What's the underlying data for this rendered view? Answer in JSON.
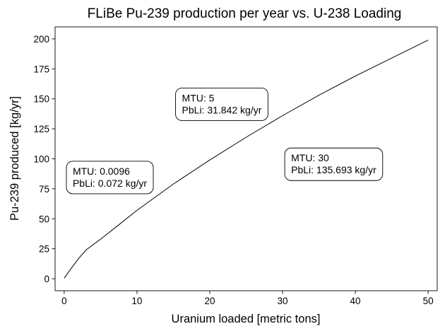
{
  "chart_data": {
    "type": "line",
    "title": "FLiBe Pu-239 production per year vs. U-238 Loading",
    "xlabel": "Uranium loaded [metric tons]",
    "ylabel": "Pu-239 produced [kg/yr]",
    "xlim": [
      -1.25,
      51.25
    ],
    "ylim": [
      -10,
      210
    ],
    "xticks": [
      0,
      10,
      20,
      30,
      40,
      50
    ],
    "yticks": [
      0,
      25,
      50,
      75,
      100,
      125,
      150,
      175,
      200
    ],
    "grid": false,
    "line_color": "#000000",
    "series": [
      {
        "x": [
          0,
          1,
          2,
          3,
          5,
          7.5,
          10,
          15,
          20,
          25,
          30,
          35,
          40,
          45,
          50
        ],
        "y": [
          0.5,
          9,
          17,
          24,
          33,
          45,
          57,
          79,
          99,
          118,
          136,
          153,
          169,
          184,
          199
        ]
      }
    ],
    "annotations": [
      {
        "x": 0.3,
        "y": 98,
        "lines": [
          "MTU: 0.0096",
          "PbLi: 0.072 kg/yr"
        ]
      },
      {
        "x": 15.3,
        "y": 159,
        "lines": [
          "MTU: 5",
          "PbLi: 31.842 kg/yr"
        ]
      },
      {
        "x": 30.3,
        "y": 109,
        "lines": [
          "MTU: 30",
          "PbLi: 135.693 kg/yr"
        ]
      }
    ]
  }
}
